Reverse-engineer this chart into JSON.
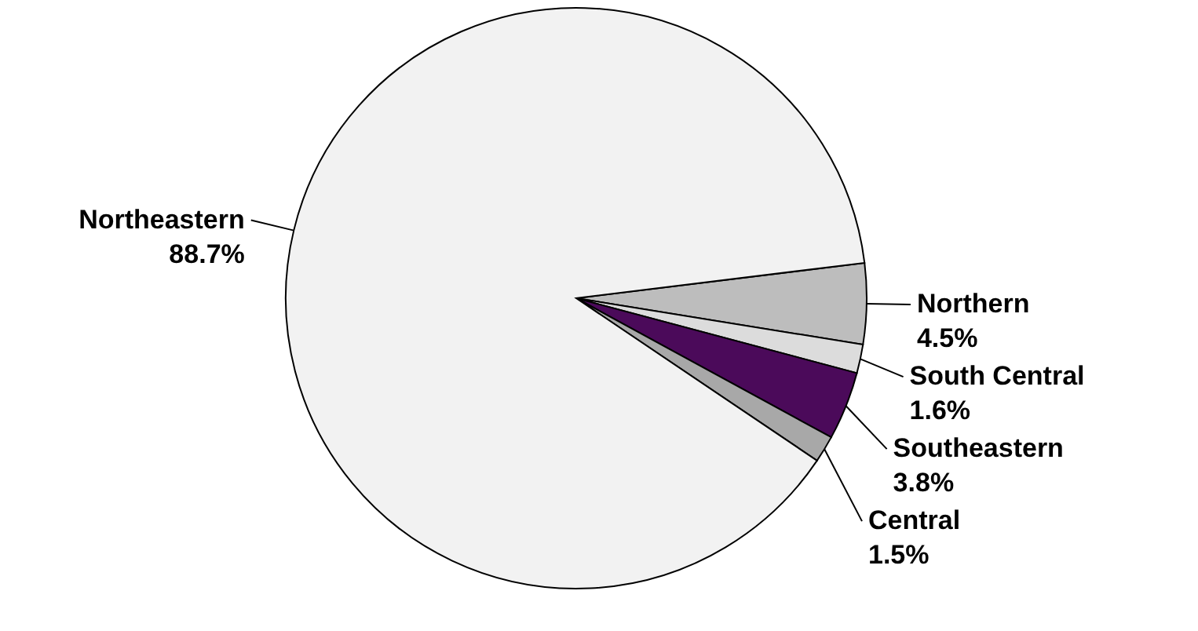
{
  "chart_data": {
    "type": "pie",
    "categories": [
      "Northern",
      "South Central",
      "Southeastern",
      "Central",
      "Northeastern"
    ],
    "values": [
      4.5,
      1.6,
      3.8,
      1.5,
      88.7
    ],
    "value_labels": [
      "4.5%",
      "1.6%",
      "3.8%",
      "1.5%",
      "88.7%"
    ],
    "colors": [
      "#bdbdbd",
      "#dcdcdc",
      "#4b0a5a",
      "#a8a8a8",
      "#f2f2f2"
    ]
  }
}
